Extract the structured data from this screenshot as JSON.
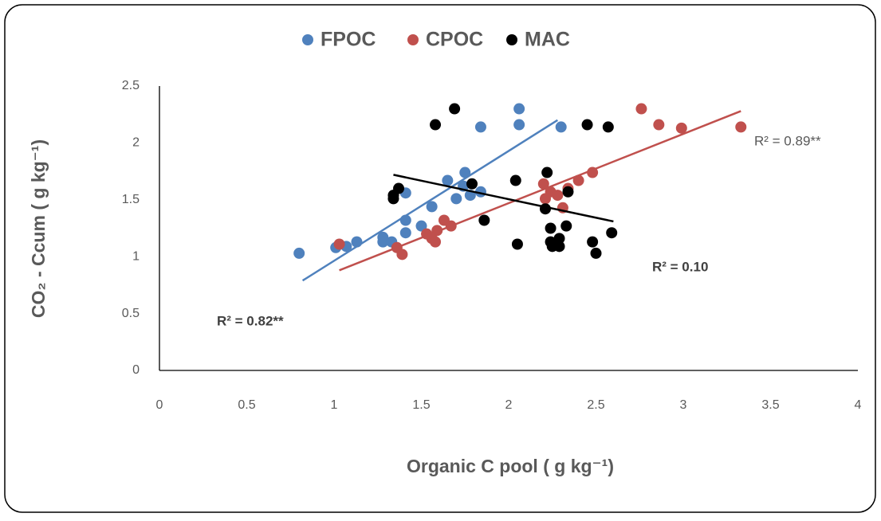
{
  "chart_data": {
    "type": "scatter",
    "xlabel": "Organic C pool ( g kg⁻¹)",
    "ylabel": "CO₂ - Ccum ( g kg⁻¹)",
    "xlim": [
      0,
      4
    ],
    "xticks": [
      0,
      0.5,
      1,
      1.5,
      2,
      2.5,
      3,
      3.5,
      4
    ],
    "ylim": [
      0,
      2.5
    ],
    "yticks": [
      0,
      0.5,
      1,
      1.5,
      2,
      2.5
    ],
    "grid": false,
    "legend": "top",
    "series": [
      {
        "name": "FPOC",
        "color": "#4f81bd",
        "x": [
          0.8,
          1.01,
          1.07,
          1.13,
          1.28,
          1.28,
          1.33,
          1.41,
          1.41,
          1.41,
          1.5,
          1.56,
          1.65,
          1.7,
          1.74,
          1.75,
          1.78,
          1.84,
          1.84,
          2.06,
          2.06,
          2.3
        ],
        "values": [
          1.03,
          1.08,
          1.09,
          1.13,
          1.17,
          1.13,
          1.13,
          1.56,
          1.32,
          1.21,
          1.27,
          1.44,
          1.67,
          1.51,
          1.62,
          1.74,
          1.54,
          1.57,
          2.14,
          2.3,
          2.16,
          2.14
        ],
        "trendline": {
          "x": [
            0.82,
            2.28
          ],
          "values": [
            0.79,
            2.2
          ]
        },
        "r2_label": "R² = 0.82**"
      },
      {
        "name": "CPOC",
        "color": "#c0504d",
        "x": [
          1.03,
          1.36,
          1.39,
          1.53,
          1.56,
          1.58,
          1.59,
          1.63,
          1.67,
          2.2,
          2.21,
          2.24,
          2.28,
          2.31,
          2.34,
          2.4,
          2.48,
          2.76,
          2.86,
          2.99,
          3.33
        ],
        "values": [
          1.11,
          1.08,
          1.02,
          1.2,
          1.16,
          1.13,
          1.23,
          1.32,
          1.27,
          1.64,
          1.51,
          1.57,
          1.54,
          1.43,
          1.6,
          1.67,
          1.74,
          2.3,
          2.16,
          2.13,
          2.14
        ],
        "trendline": {
          "x": [
            1.03,
            3.33
          ],
          "values": [
            0.88,
            2.28
          ]
        },
        "r2_label": "R² = 0.89**"
      },
      {
        "name": "MAC",
        "color": "#000000",
        "x": [
          1.34,
          1.34,
          1.37,
          1.58,
          1.69,
          1.79,
          1.86,
          2.04,
          2.05,
          2.21,
          2.22,
          2.24,
          2.24,
          2.25,
          2.29,
          2.29,
          2.33,
          2.34,
          2.45,
          2.48,
          2.5,
          2.57,
          2.59
        ],
        "values": [
          1.54,
          1.51,
          1.6,
          2.16,
          2.3,
          1.64,
          1.32,
          1.67,
          1.11,
          1.42,
          1.74,
          1.25,
          1.13,
          1.09,
          1.16,
          1.09,
          1.27,
          1.57,
          2.16,
          1.13,
          1.03,
          2.14,
          1.21
        ],
        "trendline": {
          "x": [
            1.34,
            2.6
          ],
          "values": [
            1.72,
            1.31
          ]
        },
        "r2_label": "R² = 0.10"
      }
    ]
  }
}
